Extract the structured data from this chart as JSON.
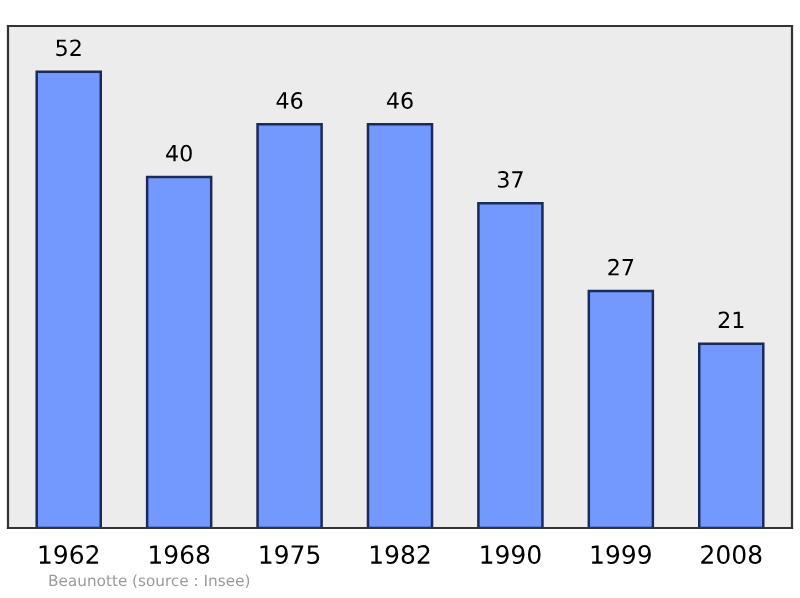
{
  "chart_data": {
    "type": "bar",
    "categories": [
      "1962",
      "1968",
      "1975",
      "1982",
      "1990",
      "1999",
      "2008"
    ],
    "values": [
      52,
      40,
      46,
      46,
      37,
      27,
      21
    ],
    "color": "#7399ff",
    "data_labels": true,
    "grid": false,
    "annotations": [
      "Beaunotte",
      "(source : Insee)"
    ]
  }
}
